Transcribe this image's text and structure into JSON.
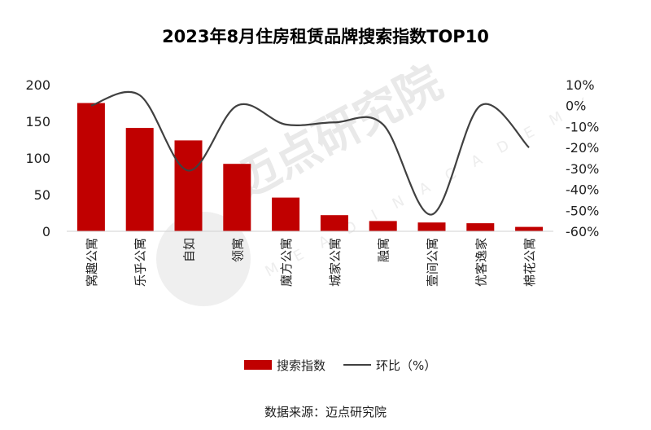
{
  "chart_data": {
    "type": "bar",
    "title": "2023年8月住房租赁品牌搜索指数TOP10",
    "categories": [
      "窝趣公寓",
      "乐乎公寓",
      "自如",
      "领寓",
      "魔方公寓",
      "城家公寓",
      "融寓",
      "壹间公寓",
      "优客逸家",
      "棉花公寓"
    ],
    "series": [
      {
        "name": "搜索指数",
        "type": "bar",
        "axis": "left",
        "color": "#c00000",
        "values": [
          175,
          141,
          124,
          92,
          46,
          22,
          14,
          12,
          11,
          6
        ]
      },
      {
        "name": "环比（%）",
        "type": "line",
        "axis": "right",
        "color": "#404040",
        "values": [
          0,
          5,
          -31,
          0,
          -9,
          -8,
          -9,
          -52,
          0,
          -20
        ]
      }
    ],
    "y_left": {
      "min": 0,
      "max": 200,
      "ticks": [
        0,
        50,
        100,
        150,
        200
      ],
      "tick_labels": [
        "0",
        "50",
        "100",
        "150",
        "200"
      ]
    },
    "y_right": {
      "min": -60,
      "max": 10,
      "ticks": [
        10,
        0,
        -10,
        -20,
        -30,
        -40,
        -50,
        -60
      ],
      "tick_labels": [
        "10%",
        "0%",
        "-10%",
        "-20%",
        "-30%",
        "-40%",
        "-50%",
        "-60%"
      ]
    },
    "legend": [
      "搜索指数",
      "环比（%）"
    ],
    "legend_position": "bottom"
  },
  "source": "数据来源：迈点研究院",
  "watermark": {
    "text": "迈点研究院",
    "subtext": "M E A D I N  A C A D E M Y"
  }
}
